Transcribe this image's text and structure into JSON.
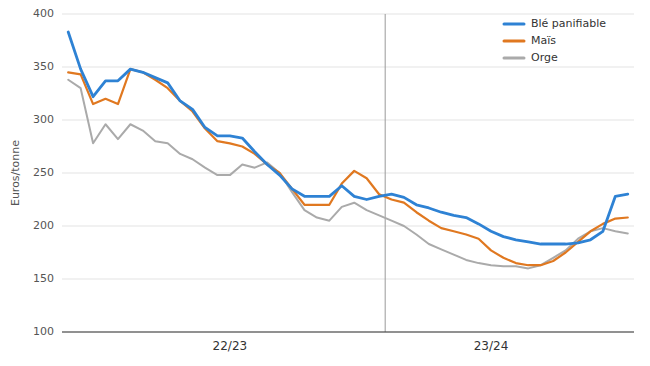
{
  "chart_data": {
    "type": "line",
    "ylabel": "Euros/tonne",
    "categories": [
      null,
      null,
      null,
      null,
      null,
      null,
      null,
      null,
      null,
      null,
      null,
      null,
      null,
      "22/23",
      null,
      null,
      null,
      null,
      null,
      null,
      null,
      null,
      null,
      null,
      null,
      null,
      null,
      null,
      null,
      null,
      null,
      null,
      null,
      null,
      "23/24",
      null,
      null,
      null,
      null,
      null,
      null,
      null,
      null,
      null,
      null,
      null
    ],
    "series": [
      {
        "name": "Orge",
        "color": "#aaaaaa",
        "values": [
          338,
          330,
          278,
          296,
          282,
          296,
          290,
          280,
          278,
          268,
          263,
          255,
          248,
          248,
          258,
          255,
          260,
          250,
          232,
          215,
          208,
          205,
          218,
          222,
          215,
          210,
          205,
          200,
          192,
          183,
          178,
          173,
          168,
          165,
          163,
          162,
          162,
          160,
          163,
          170,
          177,
          188,
          195,
          198,
          195,
          193
        ]
      },
      {
        "name": "Maïs",
        "color": "#e07820",
        "values": [
          345,
          343,
          315,
          320,
          315,
          348,
          345,
          338,
          330,
          318,
          308,
          292,
          280,
          278,
          275,
          268,
          258,
          250,
          235,
          220,
          220,
          220,
          240,
          252,
          245,
          230,
          225,
          222,
          213,
          205,
          198,
          195,
          192,
          188,
          177,
          170,
          165,
          163,
          163,
          167,
          175,
          185,
          195,
          202,
          207,
          208
        ]
      },
      {
        "name": "Blé panifiable",
        "color": "#2e82d4",
        "values": [
          383,
          348,
          322,
          337,
          337,
          348,
          345,
          340,
          335,
          318,
          310,
          293,
          285,
          285,
          283,
          270,
          258,
          248,
          235,
          228,
          228,
          228,
          238,
          228,
          225,
          228,
          230,
          227,
          220,
          217,
          213,
          210,
          208,
          202,
          195,
          190,
          187,
          185,
          183,
          183,
          183,
          184,
          187,
          195,
          228,
          230
        ]
      }
    ],
    "ylim": [
      100,
      400
    ],
    "yticks": [
      100,
      150,
      200,
      250,
      300,
      350,
      400
    ],
    "grid": true,
    "legend": "upper right"
  }
}
